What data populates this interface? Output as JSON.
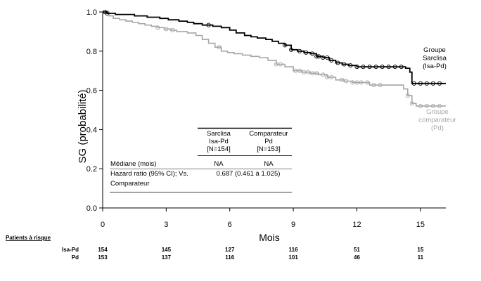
{
  "chart_data": {
    "type": "line",
    "title": "",
    "ylabel": "SG (probabilité)",
    "xlabel": "Mois",
    "xlim": [
      0,
      16.2
    ],
    "ylim": [
      0,
      1.0
    ],
    "x_ticks": [
      0,
      3,
      6,
      9,
      12,
      15
    ],
    "y_ticks": [
      {
        "value": 0.0,
        "label": "0.0"
      },
      {
        "value": 0.2,
        "label": "0.2"
      },
      {
        "value": 0.4,
        "label": "0.4"
      },
      {
        "value": 0.6,
        "label": "0.6"
      },
      {
        "value": 0.8,
        "label": "0.8"
      },
      {
        "value": 1.0,
        "label": "1.0"
      }
    ],
    "series": [
      {
        "name": "Groupe Sarclisa (Isa-Pd)",
        "legend_lines": [
          "Groupe",
          "Sarclisa",
          "(Isa-Pd)"
        ],
        "color": "#000000",
        "x": [
          0,
          0.2,
          0.6,
          1.5,
          2.1,
          2.7,
          3.1,
          3.6,
          4.0,
          4.3,
          4.7,
          5.2,
          5.6,
          6.0,
          6.3,
          6.7,
          7.0,
          7.3,
          7.7,
          8.0,
          8.3,
          8.6,
          8.9,
          9.2,
          9.5,
          9.8,
          10.1,
          10.4,
          10.7,
          11.0,
          11.3,
          11.6,
          12.0,
          12.4,
          12.8,
          13.2,
          13.6,
          14.0,
          14.3,
          14.5,
          14.6,
          14.9,
          15.3,
          15.8,
          16.2
        ],
        "y": [
          1.0,
          0.993,
          0.987,
          0.98,
          0.973,
          0.967,
          0.96,
          0.953,
          0.947,
          0.94,
          0.933,
          0.927,
          0.92,
          0.907,
          0.893,
          0.88,
          0.873,
          0.867,
          0.86,
          0.85,
          0.84,
          0.83,
          0.807,
          0.8,
          0.793,
          0.787,
          0.773,
          0.767,
          0.753,
          0.74,
          0.733,
          0.727,
          0.72,
          0.72,
          0.72,
          0.72,
          0.72,
          0.72,
          0.713,
          0.693,
          0.635,
          0.635,
          0.635,
          0.635,
          0.635
        ],
        "censor_x": [
          0.1,
          0.2,
          5.0,
          8.6,
          8.9,
          9.3,
          9.6,
          9.9,
          10.1,
          10.2,
          10.4,
          10.6,
          10.8,
          11.1,
          11.4,
          11.7,
          12.0,
          12.3,
          12.6,
          12.9,
          13.2,
          13.5,
          13.8,
          14.1,
          14.7,
          15.0,
          15.3,
          15.6,
          15.9
        ]
      },
      {
        "name": "Groupe comparateur (Pd)",
        "legend_lines": [
          "Groupe",
          "comparateur",
          "(Pd)"
        ],
        "color": "#a6a6a6",
        "x": [
          0,
          0.3,
          0.5,
          0.8,
          1.1,
          1.4,
          1.7,
          2.0,
          2.3,
          2.6,
          2.9,
          3.2,
          3.5,
          4.0,
          4.4,
          4.7,
          5.0,
          5.3,
          5.6,
          5.9,
          6.2,
          6.6,
          7.0,
          7.4,
          7.8,
          8.2,
          8.6,
          9.0,
          9.4,
          9.8,
          10.2,
          10.6,
          11.0,
          11.4,
          11.8,
          12.2,
          12.6,
          13.0,
          13.4,
          13.8,
          14.2,
          14.4,
          14.6,
          14.8,
          15.2,
          15.6,
          16.2
        ],
        "y": [
          1.0,
          0.98,
          0.967,
          0.96,
          0.953,
          0.947,
          0.94,
          0.933,
          0.927,
          0.92,
          0.913,
          0.907,
          0.9,
          0.893,
          0.88,
          0.86,
          0.84,
          0.82,
          0.8,
          0.793,
          0.787,
          0.78,
          0.773,
          0.767,
          0.753,
          0.733,
          0.72,
          0.7,
          0.693,
          0.687,
          0.68,
          0.667,
          0.653,
          0.647,
          0.64,
          0.64,
          0.627,
          0.627,
          0.627,
          0.627,
          0.607,
          0.573,
          0.533,
          0.52,
          0.52,
          0.52,
          0.52
        ],
        "censor_x": [
          0.2,
          2.6,
          3.0,
          3.3,
          5.5,
          8.2,
          8.4,
          9.1,
          9.3,
          9.5,
          9.7,
          9.9,
          10.1,
          10.4,
          10.6,
          10.8,
          11.3,
          11.5,
          11.8,
          12.0,
          12.2,
          12.5,
          12.8,
          13.1,
          14.4,
          14.6,
          15.0,
          15.3,
          15.6,
          15.9
        ]
      }
    ],
    "summary_table": {
      "col_headers": [
        {
          "line1": "Sarclisa",
          "line2": "Isa-Pd",
          "line3": "[N=154]"
        },
        {
          "line1": "Comparateur",
          "line2": "Pd",
          "line3": "[N=153]"
        }
      ],
      "rows": [
        {
          "label_lines": [
            "Médiane (mois)"
          ],
          "values": [
            "NA",
            "NA"
          ]
        },
        {
          "label_lines": [
            "Hazard ratio (95% CI); Vs.",
            "Comparateur"
          ],
          "merged_value": "0.687 (0.461 à 1.025)"
        }
      ]
    },
    "risk_table": {
      "title": "Patients à risque",
      "time_points": [
        0,
        3,
        6,
        9,
        12,
        15
      ],
      "rows": [
        {
          "label": "Isa-Pd",
          "values": [
            "154",
            "145",
            "127",
            "116",
            "51",
            "15"
          ]
        },
        {
          "label": "Pd",
          "values": [
            "153",
            "137",
            "116",
            "101",
            "46",
            "11"
          ]
        }
      ]
    }
  }
}
